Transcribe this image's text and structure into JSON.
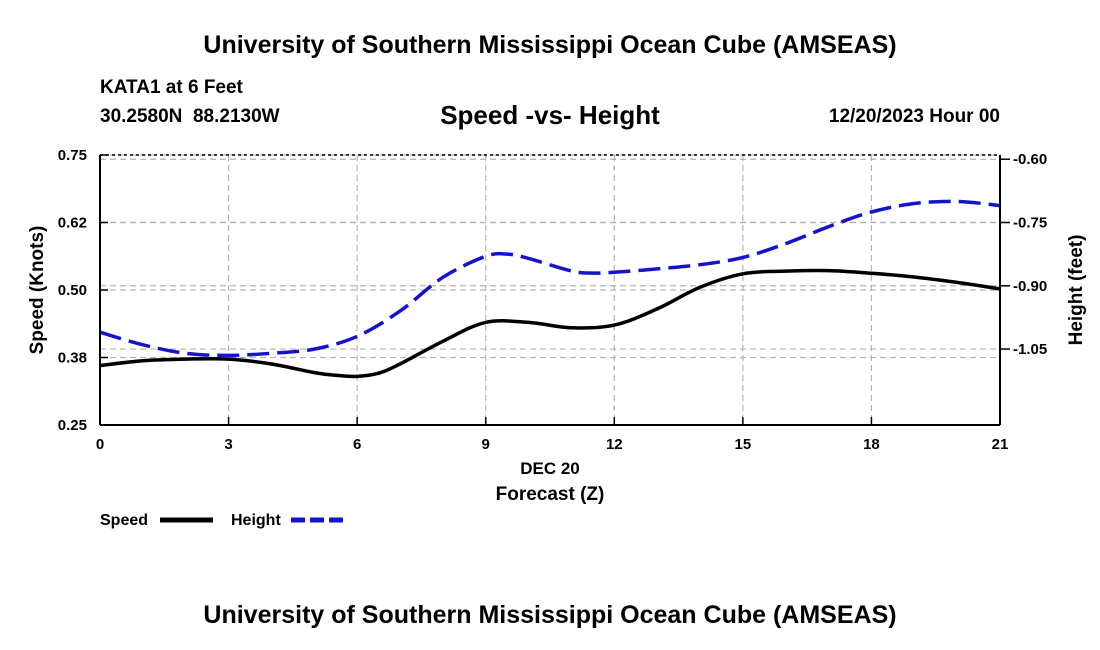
{
  "header": {
    "title": "University of Southern Mississippi Ocean Cube (AMSEAS)",
    "station": "KATA1 at 6 Feet",
    "coords": "30.2580N  88.2130W",
    "datetime": "12/20/2023 Hour 00"
  },
  "footer": {
    "title": "University of Southern Mississippi Ocean Cube (AMSEAS)"
  },
  "chart_data": {
    "type": "line",
    "title": "Speed -vs- Height",
    "xlabel": "Forecast (Z)",
    "xsublabel": "DEC 20",
    "ylabel": "Speed (Knots)",
    "y2label": "Height (feet)",
    "xlim": [
      0,
      21
    ],
    "ylim": [
      0.25,
      0.75
    ],
    "y2lim": [
      -1.23,
      -0.59
    ],
    "xticks": [
      0,
      3,
      6,
      9,
      12,
      15,
      18,
      21
    ],
    "xtick_labels": [
      "0",
      "3",
      "6",
      "9",
      "12",
      "15",
      "18",
      "21"
    ],
    "yticks": [
      0.25,
      0.375,
      0.5,
      0.625,
      0.75
    ],
    "ytick_labels": [
      "0.25",
      "0.38",
      "0.50",
      "0.62",
      "0.75"
    ],
    "y2ticks": [
      -1.05,
      -0.9,
      -0.75,
      -0.6
    ],
    "y2tick_labels": [
      "-1.05",
      "-0.90",
      "-0.75",
      "-0.60"
    ],
    "grid": true,
    "series": [
      {
        "name": "Speed",
        "axis": "left",
        "color": "#000000",
        "dash": "solid",
        "x": [
          0,
          1,
          2,
          3,
          4,
          5,
          5.5,
          6,
          6.5,
          7,
          8,
          9,
          10,
          11,
          12,
          13,
          14,
          15,
          16,
          17,
          18,
          19,
          20,
          21
        ],
        "values": [
          0.36,
          0.369,
          0.372,
          0.372,
          0.363,
          0.347,
          0.342,
          0.34,
          0.346,
          0.363,
          0.405,
          0.44,
          0.44,
          0.43,
          0.435,
          0.465,
          0.505,
          0.53,
          0.535,
          0.536,
          0.531,
          0.524,
          0.514,
          0.502
        ]
      },
      {
        "name": "Height",
        "axis": "right",
        "color": "#1414cc",
        "dash": "dashed",
        "x": [
          0,
          1,
          2,
          3,
          4,
          5,
          6,
          7,
          8,
          9,
          9.5,
          10,
          11,
          11.5,
          12,
          13,
          14,
          15,
          16,
          17,
          18,
          19,
          20,
          21
        ],
        "values": [
          -1.01,
          -1.04,
          -1.06,
          -1.065,
          -1.06,
          -1.05,
          -1.02,
          -0.96,
          -0.88,
          -0.83,
          -0.825,
          -0.835,
          -0.865,
          -0.87,
          -0.868,
          -0.86,
          -0.85,
          -0.833,
          -0.8,
          -0.76,
          -0.725,
          -0.705,
          -0.7,
          -0.71
        ]
      }
    ]
  },
  "legend": {
    "speed_label": "Speed",
    "height_label": "Height"
  }
}
